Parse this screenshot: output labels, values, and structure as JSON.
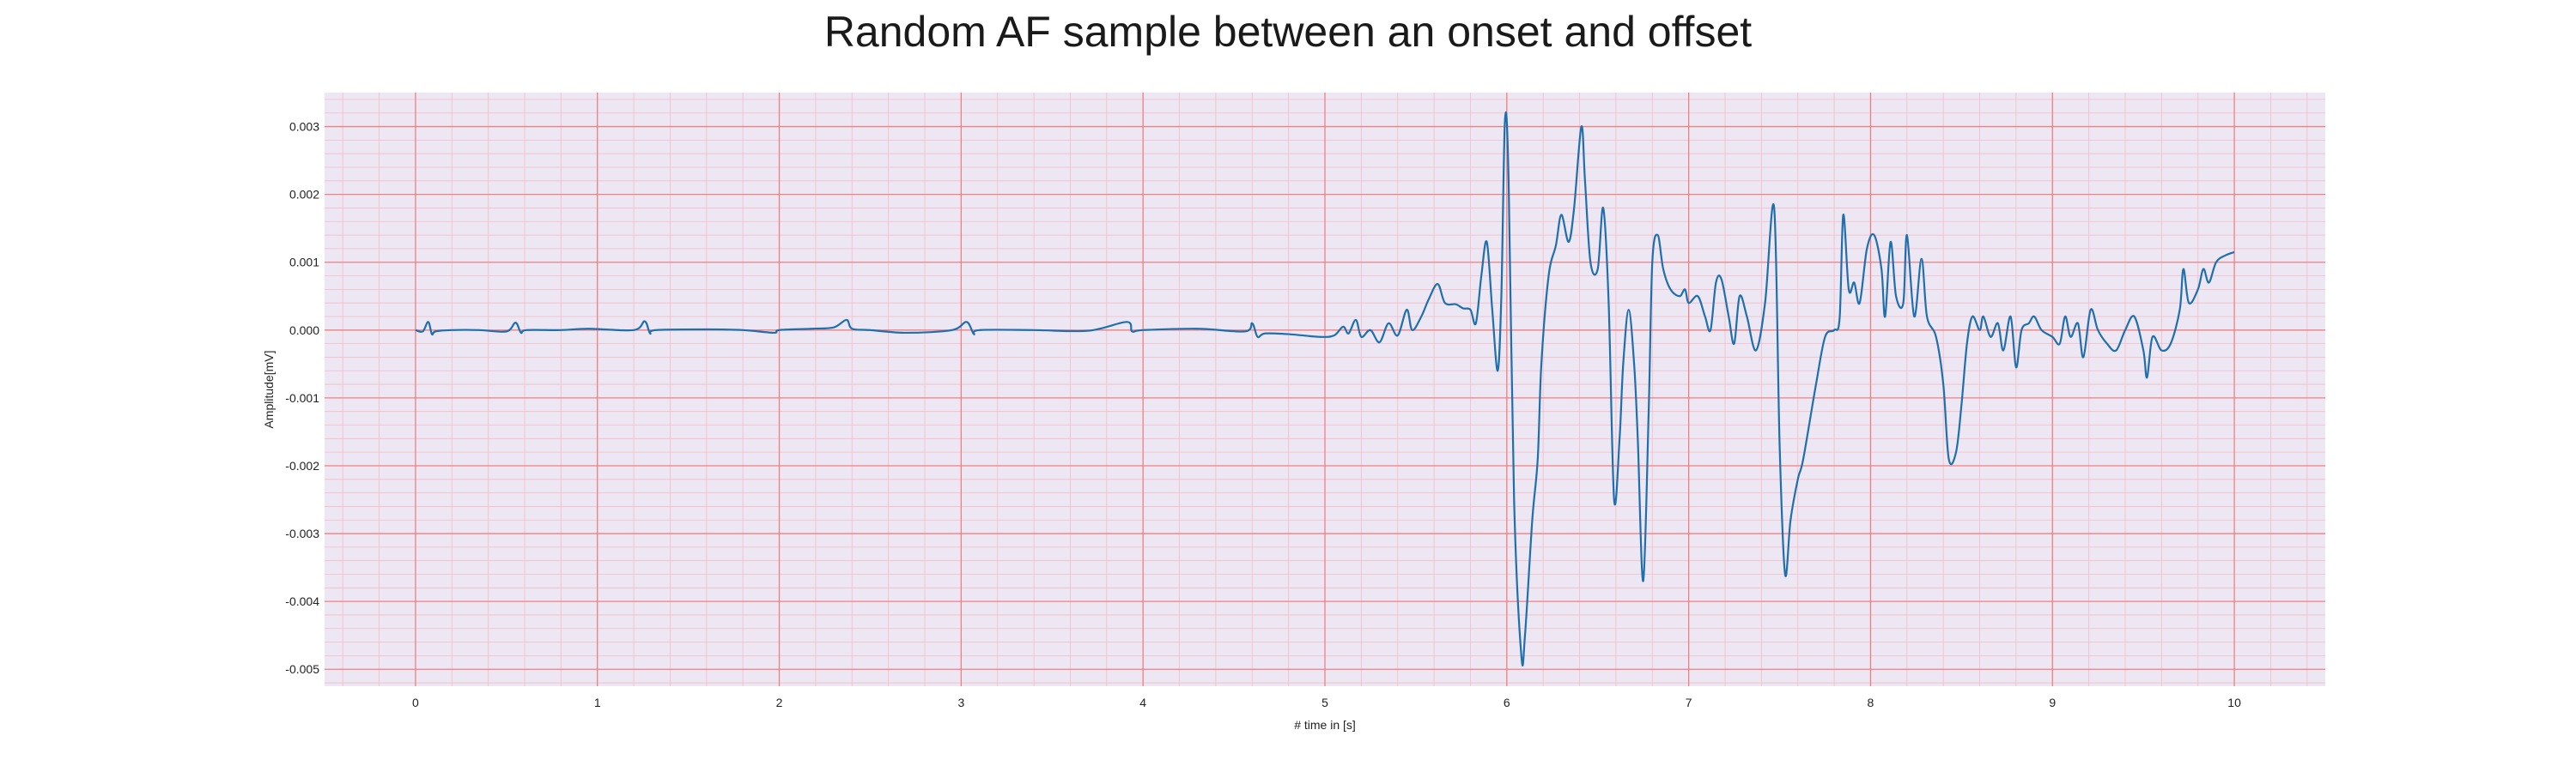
{
  "chart_data": {
    "type": "line",
    "title": "Random AF sample between an onset and offset",
    "xlabel": "# time in [s]",
    "ylabel": "Amplitude[mV]",
    "xlim": [
      -0.5,
      10.5
    ],
    "ylim": [
      -0.00525,
      0.0035
    ],
    "xticks": [
      0,
      1,
      2,
      3,
      4,
      5,
      6,
      7,
      8,
      9,
      10
    ],
    "xtick_labels": [
      "0",
      "1",
      "2",
      "3",
      "4",
      "5",
      "6",
      "7",
      "8",
      "9",
      "10"
    ],
    "yticks": [
      0.003,
      0.002,
      0.001,
      0.0,
      -0.001,
      -0.002,
      -0.003,
      -0.004,
      -0.005
    ],
    "ytick_labels": [
      "0.003",
      "0.002",
      "0.001",
      "0.000",
      "-0.001",
      "-0.002",
      "-0.003",
      "-0.004",
      "-0.005"
    ],
    "grid": true,
    "legend": false,
    "colors": {
      "line": "#1f6fad",
      "background": "#ece7f3",
      "major_grid": "#f08080",
      "minor_grid": "#f4bcc6"
    },
    "series": [
      {
        "values": [
          [
            0.0,
            0.0
          ],
          [
            0.04,
            -2e-05
          ],
          [
            0.07,
            0.00012
          ],
          [
            0.09,
            -6e-05
          ],
          [
            0.11,
            -2e-05
          ],
          [
            0.2,
            0.0
          ],
          [
            0.35,
            0.0
          ],
          [
            0.5,
            -2e-05
          ],
          [
            0.55,
            0.00011
          ],
          [
            0.58,
            -4e-05
          ],
          [
            0.61,
            0.0
          ],
          [
            0.8,
            0.0
          ],
          [
            0.95,
            2e-05
          ],
          [
            1.2,
            0.0
          ],
          [
            1.26,
            0.00013
          ],
          [
            1.29,
            -5e-05
          ],
          [
            1.32,
            0.0
          ],
          [
            1.6,
            1e-05
          ],
          [
            1.8,
            0.0
          ],
          [
            1.97,
            -4e-05
          ],
          [
            2.0,
            0.0
          ],
          [
            2.18,
            2e-05
          ],
          [
            2.3,
            4e-05
          ],
          [
            2.37,
            0.00015
          ],
          [
            2.4,
            2e-05
          ],
          [
            2.5,
            0.0
          ],
          [
            2.7,
            -4e-05
          ],
          [
            2.95,
            0.0
          ],
          [
            3.03,
            0.00012
          ],
          [
            3.07,
            -6e-05
          ],
          [
            3.1,
            0.0
          ],
          [
            3.4,
            0.0
          ],
          [
            3.7,
            -1e-05
          ],
          [
            3.91,
            0.00012
          ],
          [
            3.94,
            -2e-05
          ],
          [
            4.0,
            0.0
          ],
          [
            4.3,
            2e-05
          ],
          [
            4.56,
            -2e-05
          ],
          [
            4.6,
            0.0001
          ],
          [
            4.63,
            -0.0001
          ],
          [
            4.67,
            -5e-05
          ],
          [
            4.8,
            -6e-05
          ],
          [
            4.97,
            -0.0001
          ],
          [
            5.05,
            -8e-05
          ],
          [
            5.1,
            5e-05
          ],
          [
            5.13,
            -5e-05
          ],
          [
            5.17,
            0.00015
          ],
          [
            5.2,
            -0.0001
          ],
          [
            5.25,
            0.0
          ],
          [
            5.3,
            -0.00018
          ],
          [
            5.35,
            0.0001
          ],
          [
            5.4,
            -8e-05
          ],
          [
            5.45,
            0.0003
          ],
          [
            5.48,
            0.0
          ],
          [
            5.53,
            0.0002
          ],
          [
            5.57,
            0.00045
          ],
          [
            5.62,
            0.00068
          ],
          [
            5.66,
            0.0004
          ],
          [
            5.72,
            0.00038
          ],
          [
            5.76,
            0.00032
          ],
          [
            5.8,
            0.0003
          ],
          [
            5.83,
            0.0001
          ],
          [
            5.86,
            0.0008
          ],
          [
            5.89,
            0.0013
          ],
          [
            5.92,
            0.0003
          ],
          [
            5.95,
            -0.0006
          ],
          [
            5.97,
            0.0005
          ],
          [
            5.99,
            0.0031
          ],
          [
            6.01,
            0.0022
          ],
          [
            6.04,
            -0.0025
          ],
          [
            6.08,
            -0.0048
          ],
          [
            6.1,
            -0.0045
          ],
          [
            6.14,
            -0.0028
          ],
          [
            6.17,
            -0.0019
          ],
          [
            6.19,
            -0.0005
          ],
          [
            6.23,
            0.0008
          ],
          [
            6.27,
            0.00125
          ],
          [
            6.3,
            0.0017
          ],
          [
            6.34,
            0.0013
          ],
          [
            6.37,
            0.0018
          ],
          [
            6.41,
            0.003
          ],
          [
            6.43,
            0.0022
          ],
          [
            6.46,
            0.001
          ],
          [
            6.5,
            0.0009
          ],
          [
            6.53,
            0.0018
          ],
          [
            6.56,
            0.0004
          ],
          [
            6.59,
            -0.0025
          ],
          [
            6.62,
            -0.0016
          ],
          [
            6.64,
            -0.0005
          ],
          [
            6.67,
            0.0003
          ],
          [
            6.7,
            -0.0005
          ],
          [
            6.72,
            -0.0016
          ],
          [
            6.75,
            -0.0037
          ],
          [
            6.78,
            -0.0012
          ],
          [
            6.8,
            0.001
          ],
          [
            6.83,
            0.0014
          ],
          [
            6.86,
            0.0009
          ],
          [
            6.9,
            0.0006
          ],
          [
            6.95,
            0.0005
          ],
          [
            6.98,
            0.0006
          ],
          [
            7.0,
            0.0004
          ],
          [
            7.05,
            0.0005
          ],
          [
            7.09,
            0.0002
          ],
          [
            7.12,
            0.0
          ],
          [
            7.15,
            0.0007
          ],
          [
            7.18,
            0.00075
          ],
          [
            7.22,
            0.0002
          ],
          [
            7.25,
            -0.0002
          ],
          [
            7.28,
            0.0005
          ],
          [
            7.32,
            0.0002
          ],
          [
            7.37,
            -0.0003
          ],
          [
            7.42,
            0.0004
          ],
          [
            7.47,
            0.0018
          ],
          [
            7.5,
            -0.0017
          ],
          [
            7.53,
            -0.0036
          ],
          [
            7.56,
            -0.0028
          ],
          [
            7.6,
            -0.0022
          ],
          [
            7.63,
            -0.0019
          ],
          [
            7.7,
            -0.0008
          ],
          [
            7.75,
            -0.0001
          ],
          [
            7.8,
            0.0
          ],
          [
            7.83,
            0.00018
          ],
          [
            7.85,
            0.0017
          ],
          [
            7.88,
            0.0006
          ],
          [
            7.91,
            0.0007
          ],
          [
            7.94,
            0.0004
          ],
          [
            7.98,
            0.0012
          ],
          [
            8.02,
            0.0014
          ],
          [
            8.06,
            0.0009
          ],
          [
            8.08,
            0.0002
          ],
          [
            8.11,
            0.0013
          ],
          [
            8.14,
            0.0005
          ],
          [
            8.18,
            0.0004
          ],
          [
            8.2,
            0.0014
          ],
          [
            8.24,
            0.0002
          ],
          [
            8.28,
            0.00105
          ],
          [
            8.31,
            0.0002
          ],
          [
            8.36,
            -0.0001
          ],
          [
            8.4,
            -0.0008
          ],
          [
            8.43,
            -0.0019
          ],
          [
            8.47,
            -0.0018
          ],
          [
            8.5,
            -0.0011
          ],
          [
            8.53,
            -0.0002
          ],
          [
            8.56,
            0.0002
          ],
          [
            8.6,
            0.0
          ],
          [
            8.62,
            0.0002
          ],
          [
            8.66,
            -0.0001
          ],
          [
            8.7,
            0.0001
          ],
          [
            8.73,
            -0.0003
          ],
          [
            8.77,
            0.0002
          ],
          [
            8.8,
            -0.00055
          ],
          [
            8.83,
            0.0
          ],
          [
            8.87,
            0.0001
          ],
          [
            8.9,
            0.0002
          ],
          [
            8.94,
            0.0
          ],
          [
            9.0,
            -0.0001
          ],
          [
            9.04,
            -0.0002
          ],
          [
            9.07,
            0.0002
          ],
          [
            9.1,
            -0.0001
          ],
          [
            9.14,
            0.0001
          ],
          [
            9.17,
            -0.0004
          ],
          [
            9.21,
            0.0003
          ],
          [
            9.25,
            0.0
          ],
          [
            9.3,
            -0.0002
          ],
          [
            9.35,
            -0.0003
          ],
          [
            9.4,
            0.0
          ],
          [
            9.45,
            0.0002
          ],
          [
            9.5,
            -0.0003
          ],
          [
            9.52,
            -0.0007
          ],
          [
            9.55,
            -0.0001
          ],
          [
            9.6,
            -0.0003
          ],
          [
            9.65,
            -0.0002
          ],
          [
            9.7,
            0.0003
          ],
          [
            9.72,
            0.0009
          ],
          [
            9.75,
            0.0004
          ],
          [
            9.8,
            0.0006
          ],
          [
            9.83,
            0.0009
          ],
          [
            9.86,
            0.0007
          ],
          [
            9.9,
            0.001
          ],
          [
            9.95,
            0.0011
          ],
          [
            10.0,
            0.00115
          ]
        ]
      }
    ]
  }
}
